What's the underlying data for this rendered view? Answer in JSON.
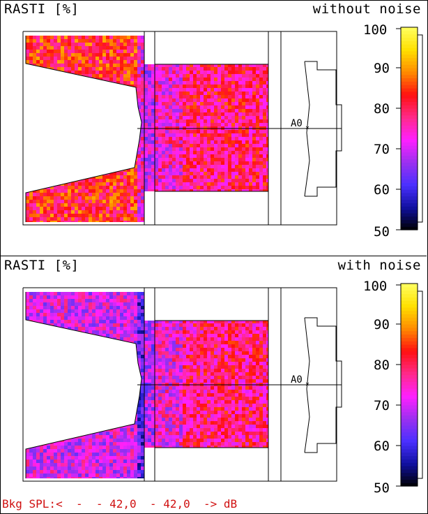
{
  "panels": [
    {
      "title": "RASTI [%]",
      "condition": "without noise",
      "mean_level": 79,
      "left_room_level": 83
    },
    {
      "title": "RASTI [%]",
      "condition": "with noise",
      "mean_level": 78,
      "left_room_level": 71
    }
  ],
  "colorbar": {
    "ticks": [
      "100",
      "90",
      "80",
      "70",
      "60",
      "50"
    ],
    "range": [
      50,
      100
    ],
    "colors": [
      "#000000",
      "#1010a0",
      "#4a30ff",
      "#9b30f0",
      "#ff20ff",
      "#ff2a8a",
      "#ff1010",
      "#ff8a00",
      "#ffe000",
      "#ffff60"
    ]
  },
  "receiver": {
    "label": "A0"
  },
  "footer": {
    "text": "Bkg SPL:<  -  - 42,0  - 42,0  -> dB"
  }
}
